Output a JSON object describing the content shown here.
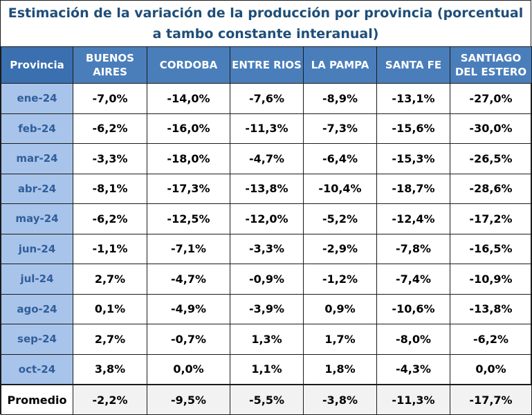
{
  "chart_data": {
    "type": "table",
    "title": "Estimación de la variación de la producción por provincia (porcentual a tambo constante interanual)",
    "row_header_label": "Provincia",
    "columns": [
      "BUENOS AIRES",
      "CORDOBA",
      "ENTRE RIOS",
      "LA PAMPA",
      "SANTA FE",
      "SANTIAGO DEL ESTERO"
    ],
    "rows": [
      {
        "label": "ene-24",
        "values": [
          "-7,0%",
          "-14,0%",
          "-7,6%",
          "-8,9%",
          "-13,1%",
          "-27,0%"
        ]
      },
      {
        "label": "feb-24",
        "values": [
          "-6,2%",
          "-16,0%",
          "-11,3%",
          "-7,3%",
          "-15,6%",
          "-30,0%"
        ]
      },
      {
        "label": "mar-24",
        "values": [
          "-3,3%",
          "-18,0%",
          "-4,7%",
          "-6,4%",
          "-15,3%",
          "-26,5%"
        ]
      },
      {
        "label": "abr-24",
        "values": [
          "-8,1%",
          "-17,3%",
          "-13,8%",
          "-10,4%",
          "-18,7%",
          "-28,6%"
        ]
      },
      {
        "label": "may-24",
        "values": [
          "-6,2%",
          "-12,5%",
          "-12,0%",
          "-5,2%",
          "-12,4%",
          "-17,2%"
        ]
      },
      {
        "label": "jun-24",
        "values": [
          "-1,1%",
          "-7,1%",
          "-3,3%",
          "-2,9%",
          "-7,8%",
          "-16,5%"
        ]
      },
      {
        "label": "jul-24",
        "values": [
          "2,7%",
          "-4,7%",
          "-0,9%",
          "-1,2%",
          "-7,4%",
          "-10,9%"
        ]
      },
      {
        "label": "ago-24",
        "values": [
          "0,1%",
          "-4,9%",
          "-3,9%",
          "0,9%",
          "-10,6%",
          "-13,8%"
        ]
      },
      {
        "label": "sep-24",
        "values": [
          "2,7%",
          "-0,7%",
          "1,3%",
          "1,7%",
          "-8,0%",
          "-6,2%"
        ]
      },
      {
        "label": "oct-24",
        "values": [
          "3,8%",
          "0,0%",
          "1,1%",
          "1,8%",
          "-4,3%",
          "0,0%"
        ]
      }
    ],
    "average": {
      "label": "Promedio",
      "values": [
        "-2,2%",
        "-9,5%",
        "-5,5%",
        "-3,8%",
        "-11,3%",
        "-17,7%"
      ]
    }
  },
  "colors": {
    "title": "#1f4e79",
    "header_bg": "#4a7ebb",
    "month_bg": "#a9c4ea",
    "month_text": "#2f5e9a",
    "average_bg": "#f2f2f2"
  }
}
